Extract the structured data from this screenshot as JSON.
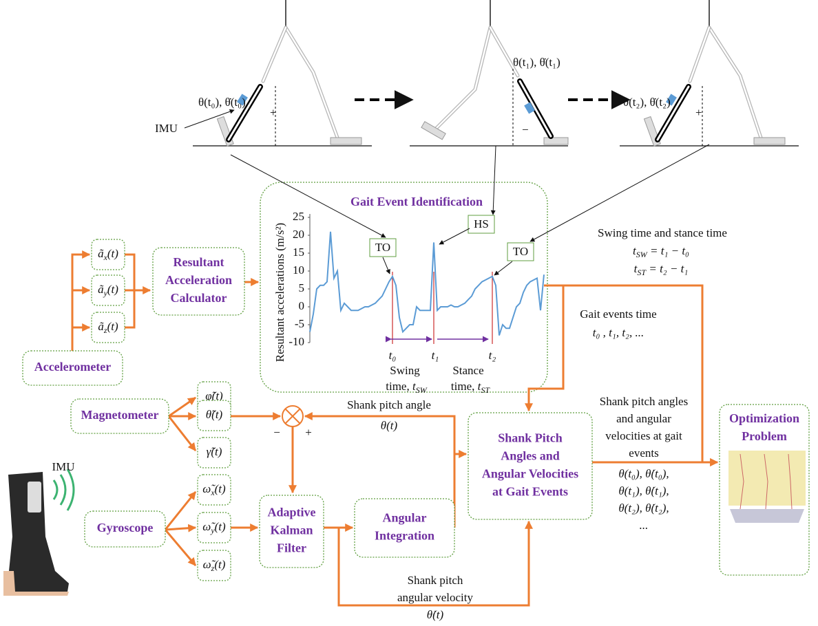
{
  "figure": {
    "angle_labels": [
      "θ(t₀), θ̇(t₀)",
      "θ(t₁), θ̇(t₁)",
      "θ(t₂), θ̇(t₂)"
    ],
    "imu_label": "IMU"
  },
  "gait_panel": {
    "title": "Gait Event Identification",
    "plot": {
      "y_label": "Resultant accelerations (m/s²)",
      "ylim": [
        -10,
        25
      ],
      "yticks": [
        -10,
        -5,
        0,
        5,
        10,
        15,
        20,
        25
      ],
      "xlim": [
        0,
        68
      ],
      "color": "#5b9bd5",
      "values": [
        -7,
        -2,
        5,
        6,
        6,
        7,
        21,
        8,
        10,
        -1,
        1,
        0,
        -1,
        -1,
        -1,
        -0.5,
        0,
        0,
        0.5,
        1,
        2,
        3,
        5,
        7,
        8.5,
        6,
        -3,
        -7,
        -6,
        -5,
        -5,
        0,
        -1,
        -1,
        -1,
        -1,
        18,
        -1,
        0,
        0,
        0,
        0.5,
        0,
        0,
        0.5,
        1,
        2,
        3,
        5,
        6,
        7,
        7.5,
        8,
        8.5,
        6,
        -8,
        -5,
        -6,
        -6,
        -3,
        0,
        1,
        4,
        6,
        7,
        7.5,
        8,
        -1,
        9
      ]
    },
    "markers": [
      "TO",
      "HS",
      "TO"
    ],
    "events": [
      "t₀",
      "t₁",
      "t₂"
    ],
    "swing": {
      "line1": "Swing",
      "line2": "time,",
      "symbol": "t",
      "subscript": "SW"
    },
    "stance": {
      "line1": "Stance",
      "line2": "time,",
      "symbol": "t",
      "subscript": "ST"
    }
  },
  "nodes": [
    {
      "lines": [
        "Resultant",
        "Acceleration",
        "Calculator"
      ]
    },
    {
      "lines": [
        "Accelerometer"
      ]
    },
    {
      "lines": [
        "Magnetometer"
      ]
    },
    {
      "lines": [
        "Gyroscope"
      ]
    },
    {
      "lines": [
        "Adaptive",
        "Kalman",
        "Filter"
      ]
    },
    {
      "lines": [
        "Angular",
        "Integration"
      ]
    },
    {
      "lines": [
        "Shank Pitch",
        "Angles and",
        "Angular Velocities",
        "at Gait Events"
      ]
    },
    {
      "lines": [
        "Optimization",
        "Problem"
      ]
    }
  ],
  "signals": [
    {
      "symbol": "ã",
      "subscript": "x",
      "argument": "(t)"
    },
    {
      "symbol": "ã",
      "subscript": "y",
      "argument": "(t)"
    },
    {
      "symbol": "ã",
      "subscript": "z",
      "argument": "(t)"
    },
    {
      "symbol": "φ̃",
      "subscript": "",
      "argument": "(t)"
    },
    {
      "symbol": "θ̃",
      "subscript": "",
      "argument": "(t)"
    },
    {
      "symbol": "γ̃",
      "subscript": "",
      "argument": "(t)"
    },
    {
      "symbol": "ω̃",
      "subscript": "x",
      "argument": "(t)"
    },
    {
      "symbol": "ω̃",
      "subscript": "y",
      "argument": "(t)"
    },
    {
      "symbol": "ω̃",
      "subscript": "z",
      "argument": "(t)"
    }
  ],
  "junction": {
    "minus": "−",
    "plus": "+"
  },
  "annotations": {
    "swing_stance": {
      "title": "Swing time and stance time",
      "formulas": [
        {
          "symbol": "t",
          "subscript": "SW",
          "rhs": " = t₁ − t₀"
        },
        {
          "symbol": "t",
          "subscript": "ST",
          "rhs": " = t₂ − t₁"
        }
      ]
    },
    "gait_events": {
      "title": "Gait events time",
      "value": "t₀ , t₁, t₂, ..."
    },
    "pitch_angle": {
      "title": "Shank pitch angle",
      "value": "θ(t)"
    },
    "angular_velocity": {
      "lines": [
        "Shank pitch",
        "angular velocity"
      ],
      "value": "θ̇(t)"
    },
    "gait_values": {
      "lines": [
        "Shank pitch angles",
        "and angular",
        "velocities at gait",
        "events"
      ],
      "values": [
        "θ(t₀), θ̇(t₀),",
        "θ(t₁), θ̇(t₁),",
        "θ(t₂), θ̇(t₂),",
        "..."
      ]
    }
  },
  "imu_photo_label": "IMU"
}
